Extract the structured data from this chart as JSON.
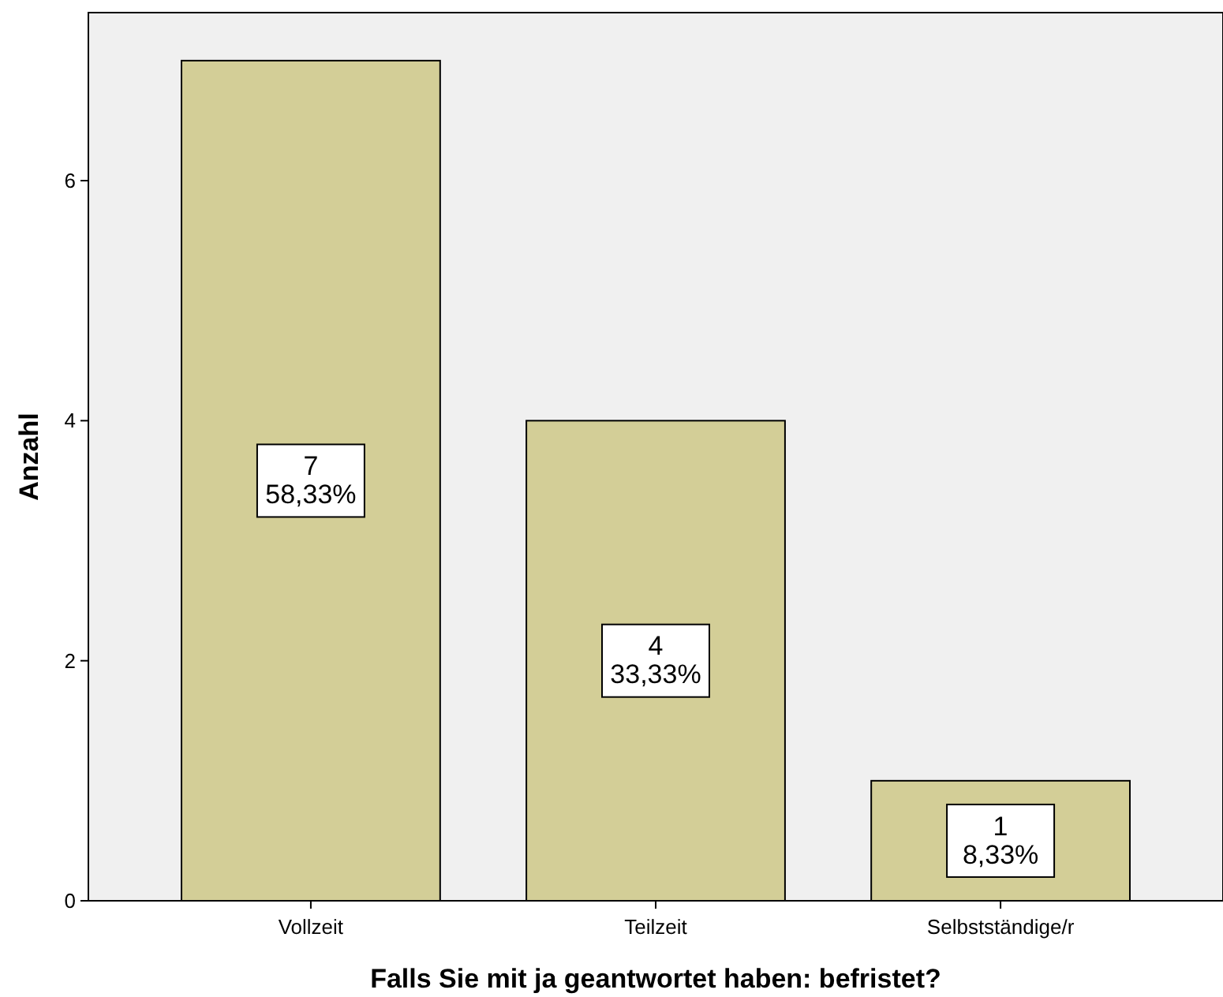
{
  "chart_data": {
    "type": "bar",
    "xlabel": "Falls Sie mit ja geantwortet haben: befristet?",
    "ylabel": "Anzahl",
    "categories": [
      "Vollzeit",
      "Teilzeit",
      "Selbstständige/r"
    ],
    "values": [
      7,
      4,
      1
    ],
    "value_labels": [
      "7\n58,33%",
      "4\n33,33%",
      "1\n8,33%"
    ],
    "color": "#d3ce97",
    "ylim": [
      0,
      7.4
    ],
    "yticks": [
      0,
      2,
      4,
      6
    ],
    "grid": false
  }
}
